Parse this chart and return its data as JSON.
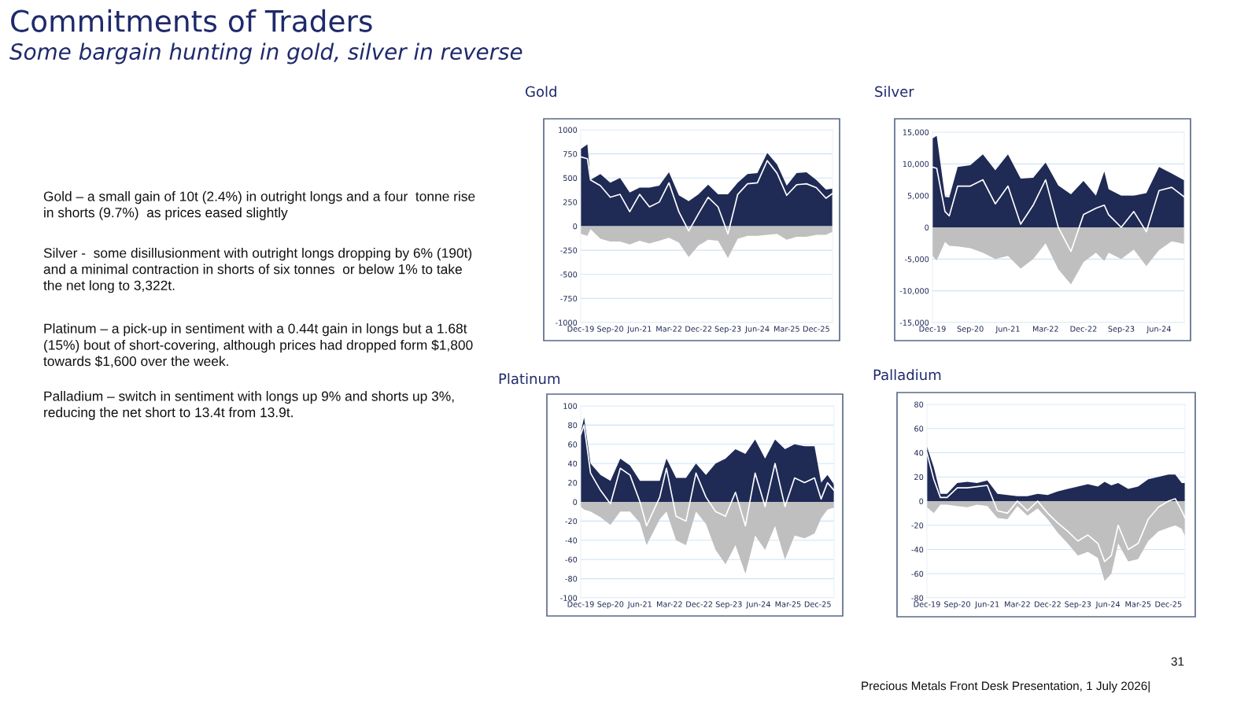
{
  "chart_data": [
    {
      "type": "other",
      "title": "Commitments of Traders",
      "subtitle": "Some bargain hunting in gold, silver in reverse",
      "annotations": [
        "Gold – a small gain of 10t (2.4%) in outright longs and a four  tonne rise in shorts (9.7%)  as prices eased slightly",
        "Silver -  some disillusionment with outright longs dropping by 6% (190t) and a minimal contraction in shorts of six tonnes  or below 1% to take the net long to 3,322t.",
        "Platinum – a pick-up in sentiment with a 0.44t gain in longs but a 1.68t (15%) bout of short-covering, although prices had dropped form $1,800 towards $1,600 over the week.",
        "Palladium – switch in sentiment with longs up 9% and shorts up 3%, reducing the net short to 13.4t from 13.9t.",
        "31",
        "Precious Metals Front Desk Presentation, 1 July 2026|"
      ]
    },
    {
      "type": "area",
      "title": "Gold",
      "x": [
        "2019-12",
        "2020-02",
        "2020-03",
        "2020-06",
        "2020-09",
        "2020-12",
        "2021-03",
        "2021-06",
        "2021-09",
        "2021-12",
        "2022-03",
        "2022-06",
        "2022-09",
        "2022-12",
        "2023-03",
        "2023-06",
        "2023-09",
        "2023-12",
        "2024-03",
        "2024-06",
        "2024-09",
        "2024-12",
        "2025-03",
        "2025-06",
        "2025-09",
        "2025-12",
        "2026-03",
        "2026-05"
      ],
      "series": [
        {
          "type": "area",
          "color": "#1f2a55",
          "values": [
            800,
            850,
            480,
            540,
            450,
            500,
            350,
            400,
            400,
            420,
            560,
            320,
            260,
            330,
            430,
            330,
            330,
            450,
            540,
            550,
            760,
            640,
            420,
            550,
            560,
            480,
            380,
            390
          ]
        },
        {
          "type": "area",
          "color": "#bfbfbf",
          "values": [
            -80,
            -100,
            -30,
            -130,
            -160,
            -160,
            -190,
            -150,
            -180,
            -150,
            -120,
            -170,
            -320,
            -200,
            -140,
            -150,
            -330,
            -130,
            -100,
            -100,
            -90,
            -80,
            -140,
            -110,
            -110,
            -90,
            -90,
            -60
          ]
        },
        {
          "type": "line",
          "color": "#ffffff",
          "values": [
            720,
            700,
            480,
            420,
            300,
            330,
            150,
            330,
            200,
            250,
            450,
            150,
            -50,
            130,
            300,
            200,
            -80,
            330,
            440,
            450,
            680,
            550,
            320,
            430,
            440,
            400,
            290,
            340
          ]
        }
      ],
      "xlim": [
        "2019-12",
        "2026-05"
      ],
      "xticks": [
        {
          "value": "2019-12",
          "label": "Dec-19"
        },
        {
          "value": "2020-09",
          "label": "Sep-20"
        },
        {
          "value": "2021-06",
          "label": "Jun-21"
        },
        {
          "value": "2022-03",
          "label": "Mar-22"
        },
        {
          "value": "2022-12",
          "label": "Dec-22"
        },
        {
          "value": "2023-09",
          "label": "Sep-23"
        },
        {
          "value": "2024-06",
          "label": "Jun-24"
        },
        {
          "value": "2025-03",
          "label": "Mar-25"
        },
        {
          "value": "2025-12",
          "label": "Dec-25"
        }
      ],
      "ylim": [
        -1000,
        1000
      ],
      "yticks": [
        -1000,
        -750,
        -500,
        -250,
        0,
        250,
        500,
        750,
        1000
      ],
      "grid": "y"
    },
    {
      "type": "area",
      "title": "Silver",
      "x": [
        "2019-12",
        "2020-01",
        "2020-03",
        "2020-04",
        "2020-06",
        "2020-09",
        "2020-12",
        "2021-03",
        "2021-06",
        "2021-09",
        "2021-12",
        "2022-03",
        "2022-06",
        "2022-09",
        "2022-12",
        "2023-03",
        "2023-05",
        "2023-06",
        "2023-09",
        "2023-12",
        "2024-03",
        "2024-06",
        "2024-09",
        "2024-12"
      ],
      "series": [
        {
          "type": "area",
          "color": "#1f2a55",
          "values": [
            14000,
            14400,
            4800,
            4700,
            9500,
            9800,
            11500,
            9000,
            11500,
            7700,
            7800,
            10200,
            6600,
            5200,
            7300,
            5000,
            8800,
            6000,
            5000,
            5000,
            5400,
            9500,
            8500,
            7400
          ]
        },
        {
          "type": "area",
          "color": "#bfbfbf",
          "values": [
            -4500,
            -5200,
            -2300,
            -2900,
            -3000,
            -3300,
            -4000,
            -5000,
            -4500,
            -6500,
            -5000,
            -2500,
            -6600,
            -9000,
            -5500,
            -4000,
            -5300,
            -4000,
            -5000,
            -3500,
            -6100,
            -3600,
            -2200,
            -2600
          ]
        },
        {
          "type": "line",
          "color": "#ffffff",
          "values": [
            9500,
            9300,
            2500,
            1800,
            6500,
            6500,
            7500,
            3700,
            6500,
            500,
            3500,
            7500,
            0,
            -3800,
            2000,
            3000,
            3500,
            2000,
            0,
            2500,
            -700,
            5800,
            6300,
            4800
          ]
        }
      ],
      "xlim": [
        "2019-12",
        "2024-12"
      ],
      "xticks": [
        {
          "value": "2019-12",
          "label": "Dec-19"
        },
        {
          "value": "2020-09",
          "label": "Sep-20"
        },
        {
          "value": "2021-06",
          "label": "Jun-21"
        },
        {
          "value": "2022-03",
          "label": "Mar-22"
        },
        {
          "value": "2022-12",
          "label": "Dec-22"
        },
        {
          "value": "2023-09",
          "label": "Sep-23"
        },
        {
          "value": "2024-06",
          "label": "Jun-24"
        }
      ],
      "ylim": [
        -15000,
        15000
      ],
      "yticks": [
        {
          "value": -15000,
          "label": "-15,000"
        },
        {
          "value": -10000,
          "label": "-10,000"
        },
        {
          "value": -5000,
          "label": "-5,000"
        },
        0,
        {
          "value": 5000,
          "label": "5,000"
        },
        {
          "value": 10000,
          "label": "10,000"
        },
        {
          "value": 15000,
          "label": "15,000"
        }
      ],
      "grid": "y"
    },
    {
      "type": "area",
      "title": "Platinum",
      "x": [
        "2019-12",
        "2020-01",
        "2020-03",
        "2020-06",
        "2020-09",
        "2020-12",
        "2021-03",
        "2021-06",
        "2021-08",
        "2021-12",
        "2022-02",
        "2022-05",
        "2022-08",
        "2022-11",
        "2023-02",
        "2023-05",
        "2023-08",
        "2023-11",
        "2024-02",
        "2024-05",
        "2024-08",
        "2024-11",
        "2025-02",
        "2025-05",
        "2025-08",
        "2025-11",
        "2026-01",
        "2026-03",
        "2026-05"
      ],
      "series": [
        {
          "type": "area",
          "color": "#1f2a55",
          "values": [
            72,
            88,
            40,
            28,
            22,
            45,
            38,
            22,
            22,
            22,
            45,
            25,
            25,
            40,
            28,
            40,
            45,
            55,
            50,
            65,
            45,
            65,
            55,
            60,
            58,
            58,
            20,
            28,
            18
          ]
        },
        {
          "type": "area",
          "color": "#bfbfbf",
          "values": [
            -5,
            -8,
            -10,
            -16,
            -24,
            -10,
            -10,
            -22,
            -45,
            -18,
            -10,
            -40,
            -45,
            -10,
            -23,
            -50,
            -65,
            -45,
            -75,
            -35,
            -50,
            -25,
            -60,
            -35,
            -38,
            -33,
            -17,
            -8,
            -6
          ]
        },
        {
          "type": "line",
          "color": "#ffffff",
          "values": [
            70,
            80,
            30,
            12,
            -2,
            35,
            28,
            0,
            -25,
            5,
            35,
            -15,
            -20,
            30,
            5,
            -10,
            -15,
            10,
            -25,
            30,
            -5,
            40,
            -5,
            25,
            20,
            25,
            3,
            20,
            12
          ]
        }
      ],
      "xlim": [
        "2019-12",
        "2026-05"
      ],
      "xticks": [
        {
          "value": "2019-12",
          "label": "Dec-19"
        },
        {
          "value": "2020-09",
          "label": "Sep-20"
        },
        {
          "value": "2021-06",
          "label": "Jun-21"
        },
        {
          "value": "2022-03",
          "label": "Mar-22"
        },
        {
          "value": "2022-12",
          "label": "Dec-22"
        },
        {
          "value": "2023-09",
          "label": "Sep-23"
        },
        {
          "value": "2024-06",
          "label": "Jun-24"
        },
        {
          "value": "2025-03",
          "label": "Mar-25"
        },
        {
          "value": "2025-12",
          "label": "Dec-25"
        }
      ],
      "ylim": [
        -100,
        100
      ],
      "yticks": [
        -100,
        -80,
        -60,
        -40,
        -20,
        0,
        20,
        40,
        60,
        80,
        100
      ],
      "grid": "y"
    },
    {
      "type": "area",
      "title": "Palladium",
      "x": [
        "2019-12",
        "2020-02",
        "2020-04",
        "2020-06",
        "2020-09",
        "2020-12",
        "2021-03",
        "2021-06",
        "2021-09",
        "2021-12",
        "2022-03",
        "2022-06",
        "2022-09",
        "2022-12",
        "2023-03",
        "2023-06",
        "2023-09",
        "2023-12",
        "2024-03",
        "2024-05",
        "2024-07",
        "2024-09",
        "2024-12",
        "2025-03",
        "2025-06",
        "2025-09",
        "2025-12",
        "2026-02",
        "2026-04",
        "2026-05"
      ],
      "series": [
        {
          "type": "area",
          "color": "#1f2a55",
          "values": [
            45,
            28,
            6,
            6,
            15,
            16,
            15,
            17,
            6,
            5,
            4,
            4,
            6,
            5,
            8,
            10,
            12,
            14,
            12,
            16,
            13,
            15,
            10,
            12,
            18,
            20,
            22,
            22,
            15,
            15
          ]
        },
        {
          "type": "area",
          "color": "#bfbfbf",
          "values": [
            -5,
            -10,
            -3,
            -3,
            -4,
            -5,
            -3,
            -4,
            -14,
            -15,
            -4,
            -12,
            -6,
            -15,
            -26,
            -35,
            -45,
            -42,
            -47,
            -66,
            -60,
            -35,
            -50,
            -48,
            -33,
            -25,
            -22,
            -20,
            -23,
            -29
          ]
        },
        {
          "type": "line",
          "color": "#ffffff",
          "values": [
            40,
            18,
            3,
            3,
            11,
            11,
            12,
            13,
            -8,
            -10,
            0,
            -8,
            0,
            -10,
            -18,
            -25,
            -33,
            -28,
            -35,
            -50,
            -45,
            -20,
            -40,
            -35,
            -15,
            -5,
            0,
            2,
            -8,
            -14
          ]
        }
      ],
      "xlim": [
        "2019-12",
        "2026-05"
      ],
      "xticks": [
        {
          "value": "2019-12",
          "label": "Dec-19"
        },
        {
          "value": "2020-09",
          "label": "Sep-20"
        },
        {
          "value": "2021-06",
          "label": "Jun-21"
        },
        {
          "value": "2022-03",
          "label": "Mar-22"
        },
        {
          "value": "2022-12",
          "label": "Dec-22"
        },
        {
          "value": "2023-09",
          "label": "Sep-23"
        },
        {
          "value": "2024-06",
          "label": "Jun-24"
        },
        {
          "value": "2025-03",
          "label": "Mar-25"
        },
        {
          "value": "2025-12",
          "label": "Dec-25"
        }
      ],
      "ylim": [
        -80,
        80
      ],
      "yticks": [
        -80,
        -60,
        -40,
        -20,
        0,
        20,
        40,
        60,
        80
      ],
      "grid": "y"
    }
  ]
}
